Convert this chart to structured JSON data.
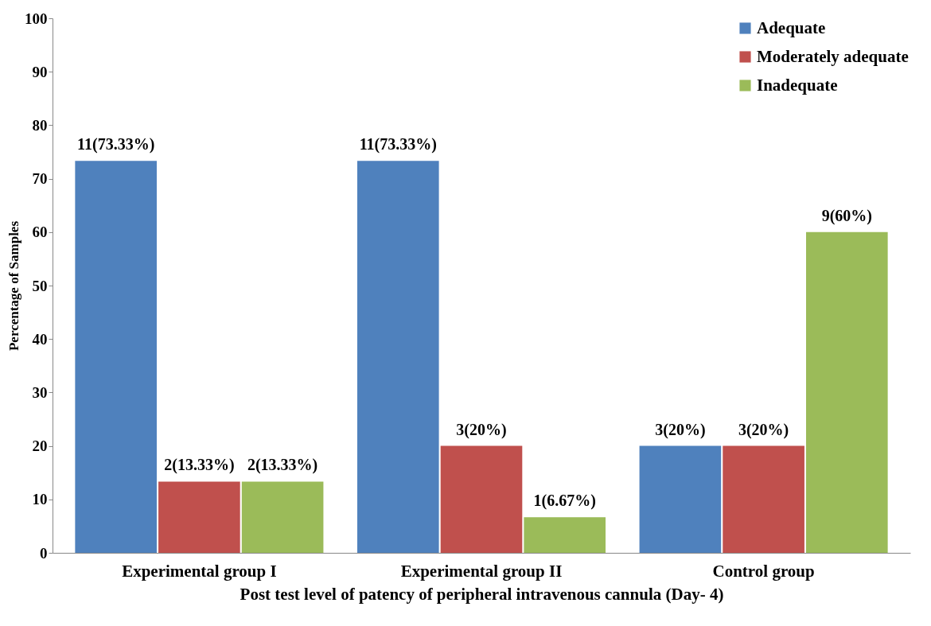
{
  "chart_data": {
    "type": "bar",
    "xlabel": "Post test level of patency of peripheral intravenous cannula  (Day- 4)",
    "ylabel": "Percentage of Samples",
    "categories": [
      "Experimental group I",
      "Experimental group II",
      "Control group"
    ],
    "series": [
      {
        "name": "Adequate",
        "color": "#4f81bd",
        "values": [
          73.33,
          73.33,
          20
        ],
        "value_labels": [
          "11(73.33%)",
          "11(73.33%)",
          "3(20%)"
        ]
      },
      {
        "name": "Moderately adequate",
        "color": "#c0504d",
        "values": [
          13.33,
          20,
          20
        ],
        "value_labels": [
          "2(13.33%)",
          "3(20%)",
          "3(20%)"
        ]
      },
      {
        "name": "Inadequate",
        "color": "#9bbb59",
        "values": [
          13.33,
          6.67,
          60
        ],
        "value_labels": [
          "2(13.33%)",
          "1(6.67%)",
          "9(60%)"
        ]
      }
    ],
    "ylim": [
      0,
      100
    ],
    "yticks": [
      0,
      10,
      20,
      30,
      40,
      50,
      60,
      70,
      80,
      90,
      100
    ],
    "grid": false,
    "legend": "top right"
  }
}
